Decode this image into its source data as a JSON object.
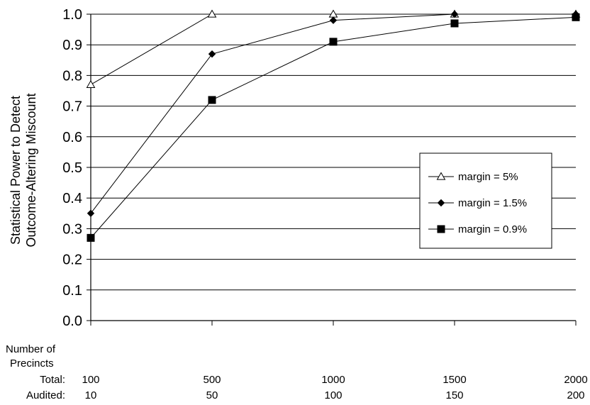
{
  "chart_data": {
    "type": "line",
    "title": "",
    "ylabel_lines": [
      "Statistical Power to Detect",
      "Outcome-Altering Miscount"
    ],
    "xlabel_lines": [
      "Number of",
      "Precincts"
    ],
    "row_labels": {
      "total": "Total:",
      "audited": "Audited:"
    },
    "x_categories_total": [
      "100",
      "500",
      "1000",
      "1500",
      "2000"
    ],
    "x_categories_audited": [
      "10",
      "50",
      "100",
      "150",
      "200"
    ],
    "ylim": [
      0,
      1
    ],
    "yticks": [
      "0.0",
      "0.1",
      "0.2",
      "0.3",
      "0.4",
      "0.5",
      "0.6",
      "0.7",
      "0.8",
      "0.9",
      "1.0"
    ],
    "grid": true,
    "legend_position": "right-middle",
    "series": [
      {
        "name": "margin = 5%",
        "marker": "triangle-open",
        "values": [
          0.77,
          1.0,
          1.0,
          1.0,
          1.0
        ]
      },
      {
        "name": "margin = 1.5%",
        "marker": "diamond-filled",
        "values": [
          0.35,
          0.87,
          0.98,
          1.0,
          1.0
        ]
      },
      {
        "name": "margin = 0.9%",
        "marker": "square-filled",
        "values": [
          0.27,
          0.72,
          0.91,
          0.97,
          0.99
        ]
      }
    ]
  }
}
